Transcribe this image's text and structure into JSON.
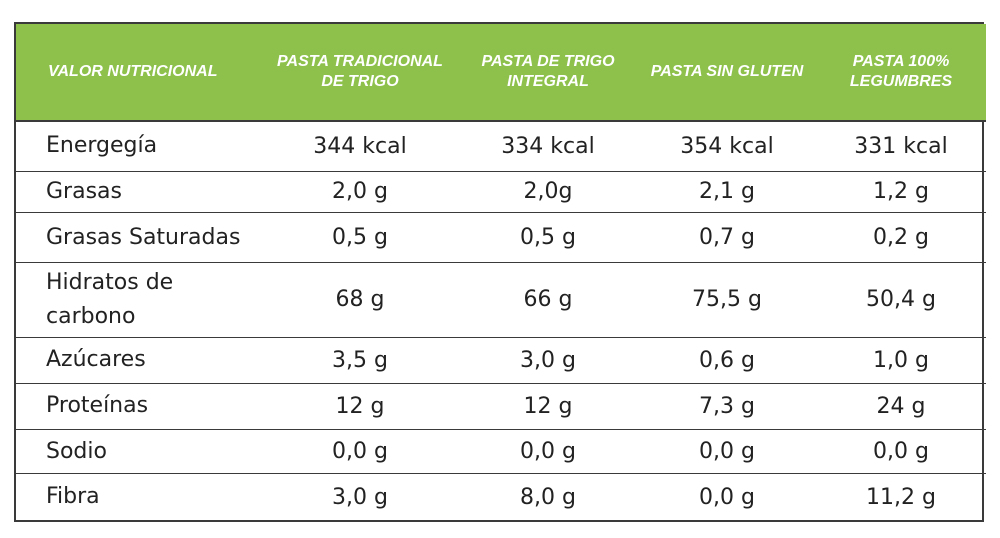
{
  "colors": {
    "header_bg": "#8dc14b",
    "header_text": "#ffffff",
    "border": "#3a3a3a",
    "body_text": "#222222"
  },
  "headers": [
    "VALOR NUTRICIONAL",
    "PASTA TRADICIONAL DE TRIGO",
    "PASTA DE TRIGO INTEGRAL",
    "PASTA SIN GLUTEN",
    "PASTA 100% LEGUMBRES"
  ],
  "rows": [
    {
      "label": "Energegía",
      "values": [
        "344 kcal",
        "334 kcal",
        "354 kcal",
        "331 kcal"
      ]
    },
    {
      "label": "Grasas",
      "values": [
        "2,0 g",
        "2,0g",
        "2,1 g",
        "1,2 g"
      ]
    },
    {
      "label": "Grasas Saturadas",
      "values": [
        "0,5 g",
        "0,5 g",
        "0,7 g",
        "0,2 g"
      ]
    },
    {
      "label": "Hidratos de carbono",
      "values": [
        "68 g",
        "66 g",
        "75,5 g",
        "50,4 g"
      ]
    },
    {
      "label": "Azúcares",
      "values": [
        "3,5 g",
        "3,0 g",
        "0,6 g",
        "1,0 g"
      ]
    },
    {
      "label": "Proteínas",
      "values": [
        "12 g",
        "12 g",
        "7,3 g",
        "24 g"
      ]
    },
    {
      "label": "Sodio",
      "values": [
        "0,0 g",
        "0,0 g",
        "0,0 g",
        "0,0 g"
      ]
    },
    {
      "label": "Fibra",
      "values": [
        "3,0 g",
        "8,0 g",
        "0,0 g",
        "11,2 g"
      ]
    }
  ]
}
